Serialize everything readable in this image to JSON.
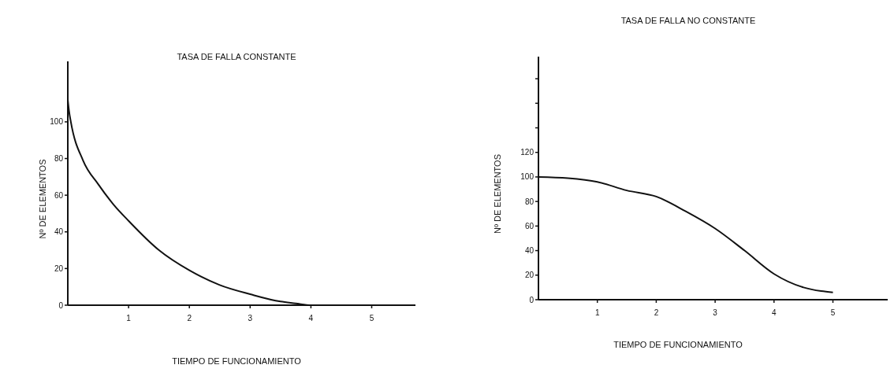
{
  "chart_data": [
    {
      "type": "line",
      "title": "TASA DE FALLA CONSTANTE",
      "xlabel": "TIEMPO DE FUNCIONAMIENTO",
      "ylabel": "Nº DE ELEMENTOS",
      "xlim": [
        0,
        5.72
      ],
      "ylim": [
        0,
        133
      ],
      "xticks": [
        1,
        2,
        3,
        4,
        5
      ],
      "yticks": [
        0,
        20,
        40,
        60,
        80,
        100
      ],
      "grid": false,
      "marker": "none",
      "line_style": "solid",
      "series": [
        {
          "color": "#111111",
          "x": [
            0,
            0.02,
            0.05,
            0.25,
            0.5,
            0.75,
            1,
            1.5,
            2,
            2.5,
            3,
            3.5,
            3.75,
            4,
            5.72
          ],
          "values": [
            112,
            106,
            100,
            79,
            66,
            55,
            46,
            30,
            19,
            11,
            6,
            2,
            1,
            0,
            0
          ]
        }
      ]
    },
    {
      "type": "line",
      "title": "TASA DE FALLA NO CONSTANTE",
      "xlabel": "TIEMPO DE FUNCIONAMIENTO",
      "ylabel": "Nº DE ELEMENTOS",
      "xlim": [
        0,
        5.93
      ],
      "ylim": [
        0,
        198
      ],
      "xticks": [
        1,
        2,
        3,
        4,
        5
      ],
      "yticks": [
        0,
        20,
        40,
        60,
        80,
        100,
        120,
        {
          "value": 140,
          "label": null
        },
        {
          "value": 160,
          "label": null
        },
        {
          "value": 180,
          "label": null
        }
      ],
      "grid": false,
      "marker": "none",
      "line_style": "solid",
      "series": [
        {
          "color": "#111111",
          "x": [
            0,
            0.5,
            1,
            1.5,
            2,
            2.5,
            3,
            3.5,
            4,
            4.5,
            4.8,
            5
          ],
          "values": [
            100,
            99,
            96,
            89,
            84,
            72,
            58,
            40,
            21,
            10,
            7,
            6
          ]
        }
      ]
    }
  ]
}
